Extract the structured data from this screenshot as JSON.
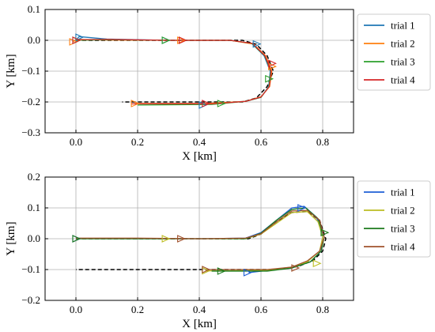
{
  "chart_data": [
    {
      "type": "line",
      "xlabel": "X [km]",
      "ylabel": "Y [km]",
      "xlim": [
        -0.1,
        0.9
      ],
      "ylim": [
        -0.3,
        0.1
      ],
      "xticks": [
        0.0,
        0.2,
        0.4,
        0.6,
        0.8
      ],
      "yticks": [
        0.1,
        0.0,
        -0.1,
        -0.2,
        -0.3
      ],
      "xtick_labels": [
        "0.0",
        "0.2",
        "0.4",
        "0.6",
        "0.8"
      ],
      "ytick_labels": [
        "0.1",
        "0.0",
        "−0.1",
        "−0.2",
        "−0.3"
      ],
      "grid": true,
      "legend_position": "outside-right",
      "reference_path": {
        "style": "dashed",
        "color": "#000000",
        "x": [
          0.0,
          0.2,
          0.4,
          0.54,
          0.585,
          0.62,
          0.64,
          0.62,
          0.585,
          0.54,
          0.4,
          0.2,
          0.15
        ],
        "y": [
          0.0,
          0.0,
          0.0,
          0.0,
          -0.013,
          -0.05,
          -0.1,
          -0.15,
          -0.187,
          -0.2,
          -0.2,
          -0.2,
          -0.2
        ]
      },
      "series": [
        {
          "name": "trial 1",
          "color": "#1f77b4",
          "x": [
            0.0,
            0.01,
            0.1,
            0.3,
            0.5,
            0.57,
            0.61,
            0.63,
            0.625,
            0.6,
            0.55,
            0.42,
            0.24
          ],
          "y": [
            0.0,
            0.012,
            0.004,
            0.0,
            0.0,
            -0.01,
            -0.05,
            -0.1,
            -0.15,
            -0.185,
            -0.198,
            -0.205,
            -0.205
          ],
          "markers": [
            [
              0.01,
              0.01
            ],
            [
              0.29,
              0.0
            ],
            [
              0.585,
              -0.012
            ],
            [
              0.41,
              -0.21
            ]
          ]
        },
        {
          "name": "trial 2",
          "color": "#ff7f0e",
          "x": [
            -0.01,
            0.0,
            0.1,
            0.3,
            0.5,
            0.575,
            0.615,
            0.635,
            0.628,
            0.6,
            0.55,
            0.42,
            0.19
          ],
          "y": [
            -0.005,
            0.003,
            0.001,
            0.0,
            0.0,
            -0.012,
            -0.05,
            -0.1,
            -0.15,
            -0.183,
            -0.198,
            -0.205,
            -0.205
          ],
          "markers": [
            [
              -0.01,
              -0.005
            ],
            [
              0.34,
              0.0
            ],
            [
              0.635,
              -0.085
            ],
            [
              0.19,
              -0.205
            ]
          ]
        },
        {
          "name": "trial 3",
          "color": "#2ca02c",
          "x": [
            0.0,
            0.1,
            0.3,
            0.5,
            0.57,
            0.612,
            0.632,
            0.626,
            0.6,
            0.55,
            0.44,
            0.2
          ],
          "y": [
            0.0,
            0.002,
            0.0,
            0.0,
            -0.01,
            -0.05,
            -0.1,
            -0.15,
            -0.185,
            -0.198,
            -0.208,
            -0.21
          ],
          "markers": [
            [
              0.0,
              0.0
            ],
            [
              0.29,
              0.0
            ],
            [
              0.625,
              -0.125
            ],
            [
              0.47,
              -0.205
            ]
          ]
        },
        {
          "name": "trial 4",
          "color": "#d62728",
          "x": [
            0.0,
            0.1,
            0.3,
            0.5,
            0.572,
            0.613,
            0.633,
            0.627,
            0.6,
            0.55,
            0.44,
            0.18
          ],
          "y": [
            0.002,
            0.003,
            0.0,
            0.0,
            -0.01,
            -0.05,
            -0.1,
            -0.15,
            -0.184,
            -0.198,
            -0.206,
            -0.206
          ],
          "markers": [
            [
              0.0,
              0.0
            ],
            [
              0.345,
              0.0
            ],
            [
              0.635,
              -0.075
            ],
            [
              0.42,
              -0.205
            ]
          ]
        }
      ]
    },
    {
      "type": "line",
      "xlabel": "X [km]",
      "ylabel": "Y [km]",
      "xlim": [
        -0.1,
        0.9
      ],
      "ylim": [
        -0.2,
        0.2
      ],
      "xticks": [
        0.0,
        0.2,
        0.4,
        0.6,
        0.8
      ],
      "yticks": [
        0.2,
        0.1,
        0.0,
        -0.1,
        -0.2
      ],
      "xtick_labels": [
        "0.0",
        "0.2",
        "0.4",
        "0.6",
        "0.8"
      ],
      "ytick_labels": [
        "0.2",
        "0.1",
        "0.0",
        "−0.1",
        "−0.2"
      ],
      "grid": true,
      "legend_position": "outside-right",
      "reference_path": {
        "style": "dashed",
        "color": "#000000",
        "x": [
          0.0,
          0.2,
          0.4,
          0.56,
          0.6,
          0.65,
          0.7,
          0.75,
          0.79,
          0.81,
          0.8,
          0.77,
          0.72,
          0.65,
          0.55,
          0.4,
          0.2,
          0.0
        ],
        "y": [
          0.0,
          0.0,
          0.0,
          0.0,
          0.015,
          0.055,
          0.085,
          0.088,
          0.06,
          0.0,
          -0.04,
          -0.07,
          -0.09,
          -0.1,
          -0.1,
          -0.1,
          -0.1,
          -0.1
        ]
      },
      "series": [
        {
          "name": "trial 1",
          "color": "#1f5fd6",
          "x": [
            0.0,
            0.2,
            0.4,
            0.55,
            0.6,
            0.65,
            0.7,
            0.74,
            0.78,
            0.8,
            0.795,
            0.76,
            0.7,
            0.62,
            0.56
          ],
          "y": [
            0.0,
            0.0,
            0.0,
            0.002,
            0.02,
            0.06,
            0.1,
            0.105,
            0.07,
            0.01,
            -0.04,
            -0.075,
            -0.095,
            -0.103,
            -0.11
          ],
          "markers": [
            [
              0.0,
              0.0
            ],
            [
              0.73,
              0.1
            ],
            [
              0.555,
              -0.11
            ]
          ]
        },
        {
          "name": "trial 2",
          "color": "#bcbd22",
          "x": [
            0.0,
            0.2,
            0.4,
            0.55,
            0.6,
            0.65,
            0.7,
            0.75,
            0.785,
            0.8,
            0.79,
            0.75,
            0.7,
            0.62,
            0.5,
            0.42
          ],
          "y": [
            0.0,
            0.0,
            0.0,
            0.0,
            0.015,
            0.05,
            0.085,
            0.088,
            0.055,
            0.005,
            -0.04,
            -0.075,
            -0.092,
            -0.102,
            -0.104,
            -0.104
          ],
          "markers": [
            [
              0.29,
              0.0
            ],
            [
              0.78,
              -0.08
            ],
            [
              0.42,
              -0.104
            ]
          ]
        },
        {
          "name": "trial 3",
          "color": "#1b7a1b",
          "x": [
            0.0,
            0.2,
            0.4,
            0.55,
            0.6,
            0.65,
            0.7,
            0.745,
            0.785,
            0.805,
            0.795,
            0.76,
            0.7,
            0.62,
            0.5,
            0.44
          ],
          "y": [
            0.0,
            0.0,
            0.0,
            0.0,
            0.018,
            0.06,
            0.095,
            0.1,
            0.065,
            0.005,
            -0.04,
            -0.075,
            -0.095,
            -0.105,
            -0.105,
            -0.105
          ],
          "markers": [
            [
              0.0,
              0.0
            ],
            [
              0.805,
              0.02
            ],
            [
              0.47,
              -0.105
            ]
          ]
        },
        {
          "name": "trial 4",
          "color": "#a0522d",
          "x": [
            0.0,
            0.2,
            0.4,
            0.55,
            0.6,
            0.65,
            0.7,
            0.75,
            0.79,
            0.805,
            0.79,
            0.75,
            0.7,
            0.62,
            0.5,
            0.42
          ],
          "y": [
            0.002,
            0.002,
            0.0,
            0.002,
            0.016,
            0.055,
            0.09,
            0.092,
            0.06,
            0.005,
            -0.04,
            -0.072,
            -0.092,
            -0.1,
            -0.1,
            -0.1
          ],
          "markers": [
            [
              0.34,
              0.0
            ],
            [
              0.71,
              -0.095
            ],
            [
              0.42,
              -0.1
            ]
          ]
        }
      ]
    }
  ]
}
